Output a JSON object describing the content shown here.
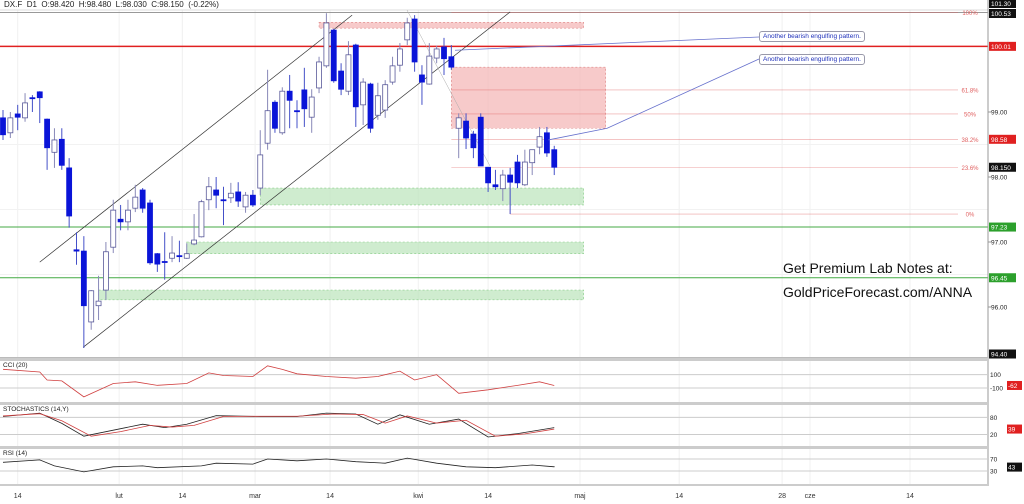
{
  "header": {
    "symbol": "DX.F",
    "timeframe": "D1",
    "open": "O:98.420",
    "high": "H:98.480",
    "low": "L:98.030",
    "close": "C:98.150",
    "change": "(-0.22%)"
  },
  "colors": {
    "bear": "#0a14d8",
    "bull_outline": "#5a5a9a",
    "resistance": "#e02020",
    "support": "#44aa44",
    "fib": "#e06060",
    "zone_red": "#f4b8b8",
    "zone_green": "#bfe5bf"
  },
  "promo": {
    "line1": "Get Premium Lab Notes at:",
    "line2": "GoldPriceForecast.com/ANNA"
  },
  "annotations": [
    {
      "text": "Another bearish engulfing pattern.",
      "anchor": [
        61.5,
        99.95
      ]
    },
    {
      "text": "Another bearish engulfing pattern.",
      "anchor": [
        74.2,
        98.57
      ],
      "via": [
        82.2,
        98.75
      ]
    }
  ],
  "price_labels": [
    {
      "text": "101.30",
      "price": 101.3,
      "style": "black",
      "pin": "top"
    },
    {
      "text": "100.53",
      "price": 100.53,
      "style": "black"
    },
    {
      "text": "100.01",
      "price": 100.01,
      "style": "red"
    },
    {
      "text": "99.00",
      "price": 99.0,
      "style": "plain"
    },
    {
      "text": "98.58",
      "price": 98.58,
      "style": "red"
    },
    {
      "text": "98.150",
      "price": 98.15,
      "style": "black"
    },
    {
      "text": "98.00",
      "price": 98.0,
      "style": "plain"
    },
    {
      "text": "97.23",
      "price": 97.23,
      "style": "green"
    },
    {
      "text": "97.00",
      "price": 97.0,
      "style": "plain"
    },
    {
      "text": "96.45",
      "price": 96.45,
      "style": "green"
    },
    {
      "text": "96.00",
      "price": 96.0,
      "style": "plain"
    },
    {
      "text": "94.40",
      "price": 94.4,
      "style": "black",
      "pin": "bottom"
    }
  ],
  "levels": {
    "grey": 100.53,
    "red": 100.01,
    "green": [
      97.23,
      96.45
    ]
  },
  "fib": {
    "start_index": 61,
    "zero_start_index": 69,
    "levels": [
      {
        "label": "100%",
        "price": 100.53
      },
      {
        "label": "61.8%",
        "price": 99.34
      },
      {
        "label": "50%",
        "price": 98.97
      },
      {
        "label": "38.2%",
        "price": 98.58
      },
      {
        "label": "23.6%",
        "price": 98.15
      },
      {
        "label": "0%",
        "price": 97.43
      }
    ]
  },
  "zones": [
    {
      "type": "red",
      "from": 43,
      "to": 79,
      "top": 100.38,
      "bottom": 100.29
    },
    {
      "type": "red",
      "from": 61,
      "to": 82,
      "top": 99.69,
      "bottom": 98.75
    },
    {
      "type": "green",
      "from": 35,
      "to": 79,
      "top": 97.83,
      "bottom": 97.57
    },
    {
      "type": "green",
      "from": 25,
      "to": 79,
      "top": 97.0,
      "bottom": 96.82
    },
    {
      "type": "green",
      "from": 13,
      "to": 79,
      "top": 96.26,
      "bottom": 96.11
    }
  ],
  "channel": [
    [
      [
        5.0,
        96.69
      ],
      [
        47.5,
        100.49
      ]
    ],
    [
      [
        10.9,
        95.38
      ],
      [
        69.0,
        100.54
      ]
    ]
  ],
  "x_axis": [
    {
      "label": "14",
      "index": 2
    },
    {
      "label": "lut",
      "index": 15.8
    },
    {
      "label": "14",
      "index": 24.4
    },
    {
      "label": "mar",
      "index": 34.3
    },
    {
      "label": "14",
      "index": 44.5
    },
    {
      "label": "kwi",
      "index": 56.5
    },
    {
      "label": "14",
      "index": 66
    },
    {
      "label": "maj",
      "index": 78.5
    },
    {
      "label": "14",
      "index": 92
    },
    {
      "label": "28",
      "index": 106
    },
    {
      "label": "cze",
      "index": 109.8
    },
    {
      "label": "14",
      "index": 123.4
    }
  ],
  "chart_data": {
    "type": "candlestick",
    "title": "DX.F D1",
    "ohlc": [
      [
        98.91,
        99.03,
        98.57,
        98.65
      ],
      [
        98.68,
        99.0,
        98.6,
        98.91
      ],
      [
        98.97,
        99.11,
        98.72,
        98.92
      ],
      [
        98.91,
        99.29,
        98.85,
        99.14
      ],
      [
        99.22,
        99.26,
        99.0,
        99.21
      ],
      [
        99.31,
        99.32,
        98.83,
        99.22
      ],
      [
        98.89,
        98.9,
        98.11,
        98.45
      ],
      [
        98.38,
        98.75,
        98.14,
        98.57
      ],
      [
        98.58,
        98.75,
        98.11,
        98.18
      ],
      [
        98.14,
        98.29,
        97.22,
        97.4
      ],
      [
        96.88,
        97.15,
        96.65,
        96.86
      ],
      [
        96.86,
        97.09,
        95.37,
        96.02
      ],
      [
        95.77,
        96.26,
        95.65,
        96.25
      ],
      [
        96.02,
        96.48,
        95.8,
        96.09
      ],
      [
        96.26,
        97.0,
        96.11,
        96.85
      ],
      [
        96.92,
        97.65,
        96.83,
        97.49
      ],
      [
        97.35,
        97.57,
        97.18,
        97.31
      ],
      [
        97.31,
        97.65,
        97.18,
        97.49
      ],
      [
        97.52,
        97.88,
        97.46,
        97.69
      ],
      [
        97.8,
        97.83,
        97.45,
        97.52
      ],
      [
        97.6,
        97.65,
        96.65,
        96.68
      ],
      [
        96.82,
        96.83,
        96.54,
        96.66
      ],
      [
        96.7,
        97.15,
        96.42,
        96.69
      ],
      [
        96.75,
        97.09,
        96.69,
        96.83
      ],
      [
        96.79,
        97.02,
        96.69,
        96.78
      ],
      [
        96.75,
        96.98,
        96.74,
        96.82
      ],
      [
        96.97,
        97.43,
        96.95,
        97.03
      ],
      [
        97.08,
        97.65,
        97.07,
        97.62
      ],
      [
        97.65,
        98.0,
        97.49,
        97.85
      ],
      [
        97.8,
        98.0,
        97.52,
        97.72
      ],
      [
        97.65,
        97.85,
        97.26,
        97.64
      ],
      [
        97.68,
        97.91,
        97.6,
        97.75
      ],
      [
        97.77,
        97.92,
        97.54,
        97.63
      ],
      [
        97.54,
        97.77,
        97.45,
        97.72
      ],
      [
        97.72,
        97.8,
        97.54,
        97.57
      ],
      [
        97.83,
        98.72,
        97.72,
        98.34
      ],
      [
        98.52,
        99.65,
        98.42,
        99.02
      ],
      [
        99.15,
        99.18,
        98.68,
        98.75
      ],
      [
        98.68,
        99.38,
        98.65,
        99.32
      ],
      [
        99.32,
        99.57,
        98.75,
        99.18
      ],
      [
        99.02,
        99.18,
        98.75,
        99.01
      ],
      [
        99.34,
        99.68,
        98.77,
        99.05
      ],
      [
        98.92,
        99.35,
        98.68,
        99.23
      ],
      [
        99.37,
        99.85,
        99.29,
        99.77
      ],
      [
        99.71,
        100.52,
        99.68,
        100.37
      ],
      [
        100.26,
        100.28,
        99.45,
        99.48
      ],
      [
        99.63,
        99.75,
        99.26,
        99.35
      ],
      [
        99.32,
        100.09,
        99.26,
        99.88
      ],
      [
        100.03,
        100.05,
        98.77,
        99.08
      ],
      [
        99.11,
        99.52,
        98.8,
        99.46
      ],
      [
        99.43,
        99.45,
        98.68,
        98.75
      ],
      [
        98.95,
        99.45,
        98.88,
        99.25
      ],
      [
        99.03,
        99.49,
        98.91,
        99.42
      ],
      [
        99.46,
        99.85,
        99.42,
        99.71
      ],
      [
        99.72,
        100.06,
        99.62,
        99.97
      ],
      [
        100.11,
        100.45,
        100.03,
        100.37
      ],
      [
        100.43,
        100.49,
        99.62,
        99.77
      ],
      [
        99.57,
        99.72,
        99.11,
        99.46
      ],
      [
        99.43,
        100.06,
        99.42,
        99.86
      ],
      [
        99.83,
        100.02,
        99.75,
        99.97
      ],
      [
        100.0,
        100.14,
        99.57,
        99.82
      ],
      [
        99.85,
        100.03,
        99.65,
        99.69
      ],
      [
        98.75,
        98.98,
        98.29,
        98.91
      ],
      [
        98.86,
        98.98,
        98.43,
        98.6
      ],
      [
        98.66,
        98.71,
        98.29,
        98.45
      ],
      [
        98.92,
        98.98,
        98.17,
        98.17
      ],
      [
        98.15,
        98.15,
        97.77,
        97.91
      ],
      [
        97.88,
        98.11,
        97.8,
        97.85
      ],
      [
        97.82,
        98.11,
        97.63,
        98.03
      ],
      [
        98.03,
        98.14,
        97.43,
        97.92
      ],
      [
        98.23,
        98.34,
        97.83,
        97.91
      ],
      [
        97.88,
        98.42,
        97.86,
        98.23
      ],
      [
        98.22,
        98.42,
        98.03,
        98.42
      ],
      [
        98.46,
        98.77,
        98.35,
        98.62
      ],
      [
        98.68,
        98.77,
        98.31,
        98.37
      ],
      [
        98.42,
        98.48,
        98.03,
        98.15
      ]
    ],
    "ylim": [
      94.4,
      101.3
    ],
    "indicators": [
      {
        "name": "CCI (20)",
        "label": "-62",
        "levels": [
          100,
          -100
        ],
        "level_labels": [
          "100",
          "-100"
        ],
        "range": [
          -250,
          290
        ],
        "series": [
          {
            "color": "#d04040",
            "points": [
              [
                0,
                180
              ],
              [
                5,
                140
              ],
              [
                6,
                20
              ],
              [
                8,
                7
              ],
              [
                11,
                -233
              ],
              [
                15,
                -33
              ],
              [
                18,
                -7
              ],
              [
                21,
                -60
              ],
              [
                25,
                -33
              ],
              [
                28,
                127
              ],
              [
                30,
                87
              ],
              [
                34,
                73
              ],
              [
                36,
                233
              ],
              [
                38,
                180
              ],
              [
                40,
                113
              ],
              [
                44,
                73
              ],
              [
                48,
                47
              ],
              [
                51,
                73
              ],
              [
                54,
                153
              ],
              [
                56,
                20
              ],
              [
                59,
                100
              ],
              [
                62,
                -180
              ],
              [
                66,
                -127
              ],
              [
                70,
                -60
              ],
              [
                73,
                -7
              ],
              [
                75,
                -62
              ]
            ]
          }
        ]
      },
      {
        "name": "STOCHASTICS (14,Y)",
        "label": "39",
        "levels": [
          80,
          20
        ],
        "level_labels": [
          "80",
          "20"
        ],
        "range": [
          -10,
          120
        ],
        "series": [
          {
            "color": "#222222",
            "points": [
              [
                0,
                83
              ],
              [
                5,
                95
              ],
              [
                8,
                59
              ],
              [
                11,
                14
              ],
              [
                15,
                35
              ],
              [
                19,
                56
              ],
              [
                22,
                44
              ],
              [
                25,
                56
              ],
              [
                29,
                86
              ],
              [
                35,
                83
              ],
              [
                40,
                83
              ],
              [
                44,
                95
              ],
              [
                48,
                92
              ],
              [
                51,
                56
              ],
              [
                54,
                89
              ],
              [
                58,
                56
              ],
              [
                62,
                74
              ],
              [
                66,
                11
              ],
              [
                70,
                23
              ],
              [
                75,
                44
              ]
            ]
          },
          {
            "color": "#d04040",
            "points": [
              [
                0,
                85
              ],
              [
                5,
                93
              ],
              [
                8,
                68
              ],
              [
                12,
                14
              ],
              [
                16,
                30
              ],
              [
                20,
                52
              ],
              [
                23,
                46
              ],
              [
                26,
                52
              ],
              [
                30,
                83
              ],
              [
                35,
                84
              ],
              [
                40,
                84
              ],
              [
                45,
                92
              ],
              [
                49,
                90
              ],
              [
                52,
                60
              ],
              [
                55,
                85
              ],
              [
                59,
                60
              ],
              [
                63,
                70
              ],
              [
                67,
                14
              ],
              [
                71,
                22
              ],
              [
                75,
                39
              ]
            ]
          }
        ]
      },
      {
        "name": "RSI (14)",
        "label": "43",
        "levels": [
          70,
          30
        ],
        "level_labels": [
          "70",
          "30"
        ],
        "range": [
          0,
          100
        ],
        "series": [
          {
            "color": "#222222",
            "points": [
              [
                0,
                59
              ],
              [
                5,
                67
              ],
              [
                7,
                47
              ],
              [
                11,
                27
              ],
              [
                15,
                44
              ],
              [
                19,
                47
              ],
              [
                21,
                41
              ],
              [
                27,
                47
              ],
              [
                29,
                56
              ],
              [
                34,
                53
              ],
              [
                36,
                70
              ],
              [
                40,
                64
              ],
              [
                44,
                70
              ],
              [
                48,
                61
              ],
              [
                52,
                56
              ],
              [
                55,
                73
              ],
              [
                59,
                56
              ],
              [
                63,
                44
              ],
              [
                67,
                41
              ],
              [
                72,
                50
              ],
              [
                75,
                44
              ],
              [
                75,
                43
              ]
            ]
          }
        ]
      }
    ]
  }
}
